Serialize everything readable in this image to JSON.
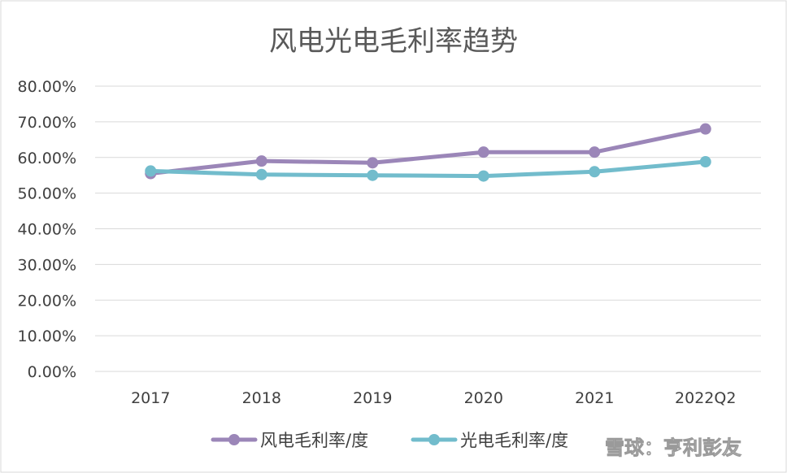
{
  "chart_data": {
    "type": "line",
    "title": "风电光电毛利率趋势",
    "xlabel": "",
    "ylabel": "",
    "categories": [
      "2017",
      "2018",
      "2019",
      "2020",
      "2021",
      "2022Q2"
    ],
    "y_ticks": [
      "0.00%",
      "10.00%",
      "20.00%",
      "30.00%",
      "40.00%",
      "50.00%",
      "60.00%",
      "70.00%",
      "80.00%"
    ],
    "ylim": [
      0,
      80
    ],
    "y_unit": "%",
    "grid": true,
    "legend_position": "bottom",
    "series": [
      {
        "name": "风电毛利率/度",
        "color": "#9b86b8",
        "values": [
          55.5,
          59.0,
          58.5,
          61.5,
          61.5,
          68.0
        ]
      },
      {
        "name": "光电毛利率/度",
        "color": "#72bccc",
        "values": [
          56.2,
          55.2,
          55.0,
          54.8,
          56.0,
          58.8
        ]
      }
    ]
  },
  "watermark": {
    "text": "雪球：亨利彭友",
    "icon": "snowball-logo-icon"
  }
}
